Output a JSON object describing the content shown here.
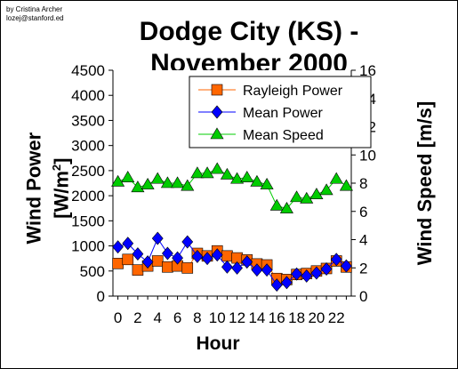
{
  "credit": {
    "line1": "by Cristina Archer",
    "line2": "lozej@stanford.ed"
  },
  "chart_data": {
    "type": "line",
    "title_lines": [
      "Dodge City (KS) -",
      "November 2000"
    ],
    "xlabel": "Hour",
    "ylabel_left": {
      "main": "Wind Power",
      "unit_prefix": "[W/m",
      "unit_sup": "2",
      "unit_suffix": "]"
    },
    "ylabel_right": "Wind Speed [m/s]",
    "x": [
      0,
      1,
      2,
      3,
      4,
      5,
      6,
      7,
      8,
      9,
      10,
      11,
      12,
      13,
      14,
      15,
      16,
      17,
      18,
      19,
      20,
      21,
      22,
      23
    ],
    "x_tick_labels": [
      "0",
      "2",
      "4",
      "6",
      "8",
      "10",
      "12",
      "14",
      "16",
      "18",
      "20",
      "22"
    ],
    "x_tick_values": [
      0,
      2,
      4,
      6,
      8,
      10,
      12,
      14,
      16,
      18,
      20,
      22
    ],
    "y_left_ticks": [
      "0",
      "500",
      "1000",
      "1500",
      "2000",
      "2500",
      "3000",
      "3500",
      "4000",
      "4500"
    ],
    "y_left_lim": [
      0,
      4500
    ],
    "y_right_ticks": [
      "0",
      "2",
      "4",
      "6",
      "8",
      "10",
      "12",
      "14",
      "16"
    ],
    "y_right_lim": [
      0,
      16
    ],
    "legend_position": "top-right",
    "series": [
      {
        "name": "Rayleigh Power",
        "axis": "left",
        "marker": "square",
        "color": "#ff6600",
        "values": [
          650,
          730,
          520,
          600,
          700,
          580,
          600,
          560,
          850,
          800,
          900,
          800,
          760,
          720,
          640,
          620,
          350,
          330,
          430,
          450,
          500,
          550,
          700,
          580
        ]
      },
      {
        "name": "Mean Power",
        "axis": "left",
        "marker": "diamond",
        "color": "#0000ff",
        "values": [
          980,
          1050,
          840,
          680,
          1150,
          850,
          760,
          1080,
          790,
          750,
          820,
          580,
          560,
          680,
          520,
          520,
          220,
          270,
          440,
          400,
          460,
          540,
          730,
          600
        ]
      },
      {
        "name": "Mean Speed",
        "axis": "right",
        "marker": "triangle",
        "color": "#00cc00",
        "values": [
          8.1,
          8.4,
          7.7,
          7.9,
          8.3,
          8.0,
          8.0,
          7.8,
          8.7,
          8.7,
          9.0,
          8.6,
          8.3,
          8.4,
          8.1,
          7.9,
          6.4,
          6.2,
          7.0,
          6.9,
          7.2,
          7.5,
          8.3,
          7.8
        ]
      }
    ]
  }
}
